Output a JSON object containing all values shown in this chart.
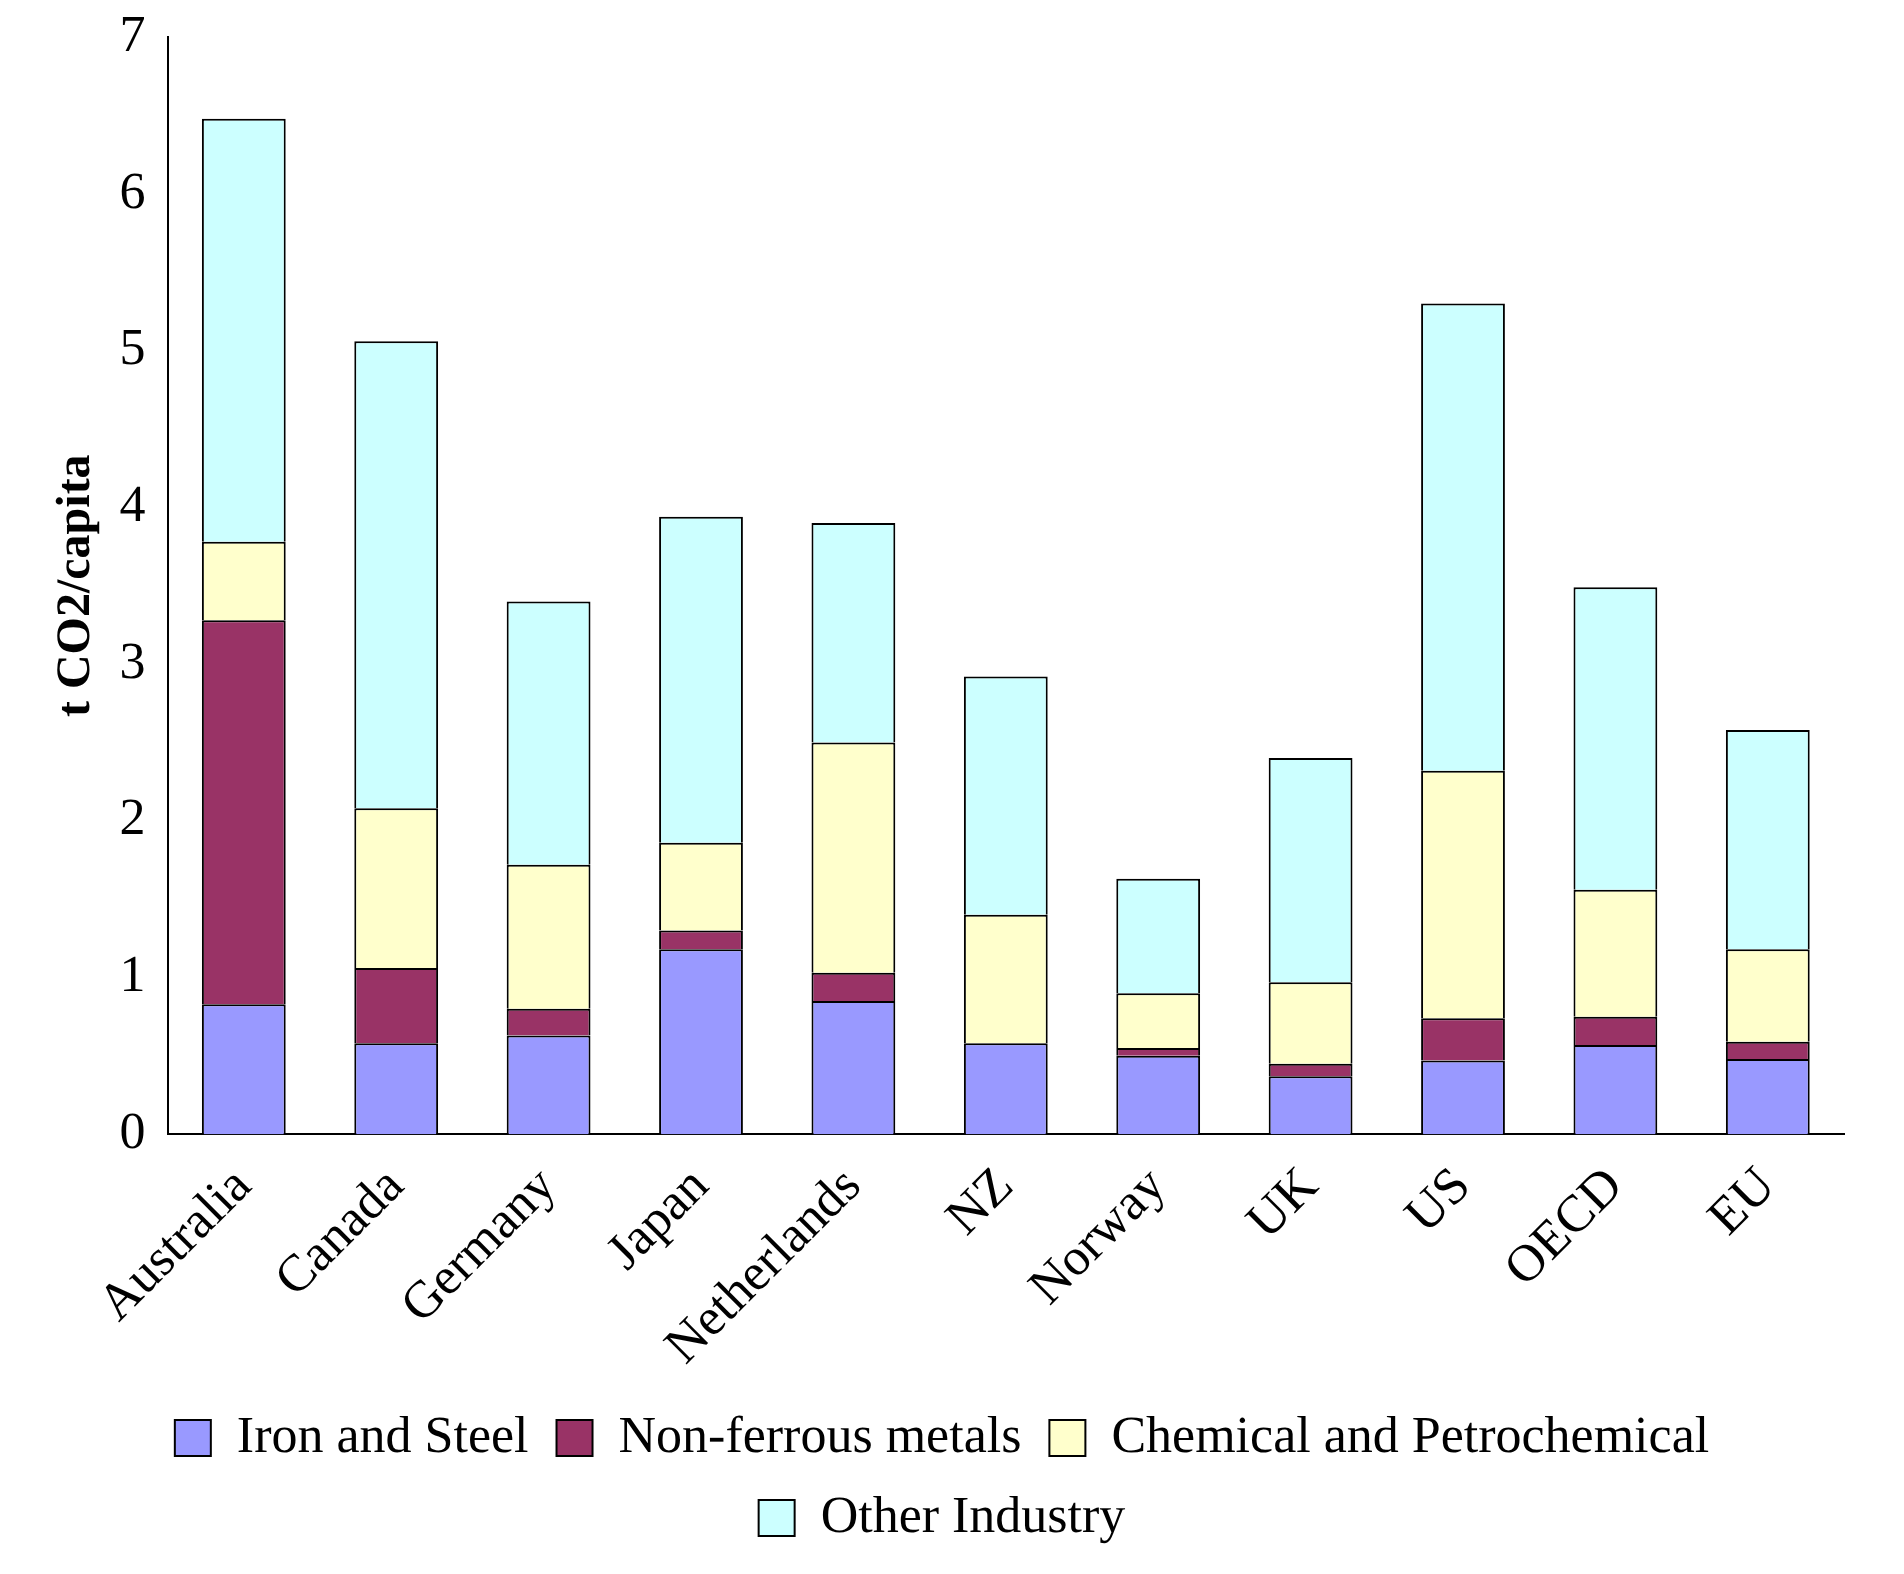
{
  "chart_data": {
    "type": "bar",
    "stacked": true,
    "ylabel": "t CO2/capita",
    "categories": [
      "Australia",
      "Canada",
      "Germany",
      "Japan",
      "Netherlands",
      "NZ",
      "Norway",
      "UK",
      "US",
      "OECD",
      "EU"
    ],
    "series": [
      {
        "name": "Iron and Steel",
        "color": "#9999ff",
        "values": [
          0.83,
          0.58,
          0.63,
          1.18,
          0.85,
          0.58,
          0.5,
          0.37,
          0.47,
          0.57,
          0.48
        ]
      },
      {
        "name": "Non-ferrous metals",
        "color": "#993366",
        "values": [
          2.45,
          0.48,
          0.17,
          0.12,
          0.18,
          0,
          0.05,
          0.08,
          0.27,
          0.18,
          0.11
        ]
      },
      {
        "name": "Chemical and Petrochemical",
        "color": "#ffffcc",
        "values": [
          0.5,
          1.02,
          0.92,
          0.56,
          1.47,
          0.82,
          0.35,
          0.52,
          1.58,
          0.81,
          0.59
        ]
      },
      {
        "name": "Other Industry",
        "color": "#ccffff",
        "values": [
          2.7,
          2.98,
          1.68,
          2.08,
          1.4,
          1.52,
          0.73,
          1.43,
          2.98,
          1.93,
          1.4
        ]
      }
    ],
    "ylim": [
      0,
      7
    ],
    "yticks": [
      0,
      1,
      2,
      3,
      4,
      5,
      6,
      7
    ],
    "grid": false,
    "legend": "bottom"
  }
}
